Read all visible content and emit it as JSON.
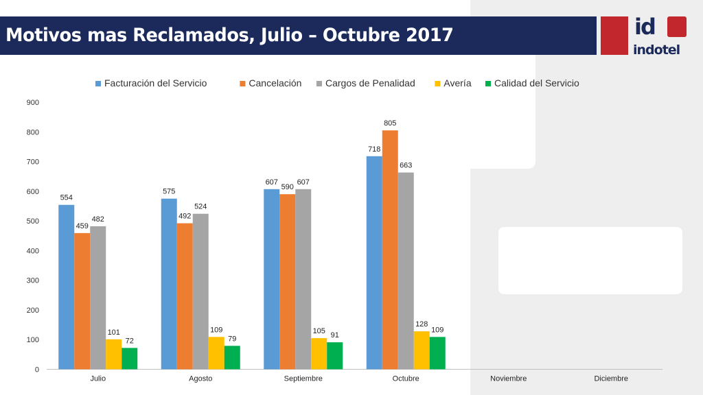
{
  "header": {
    "title": "Motivos mas Reclamados, Julio – Octubre 2017",
    "logo_mark": "id",
    "logo_text": "indotel"
  },
  "colors": {
    "title_bar": "#1b2a5b",
    "logo_red": "#c1272d"
  },
  "chart_data": {
    "type": "bar",
    "categories": [
      "Julio",
      "Agosto",
      "Septiembre",
      "Octubre",
      "Noviembre",
      "Diciembre"
    ],
    "series": [
      {
        "name": "Facturación del Servicio",
        "color": "#5b9bd5",
        "values": [
          554,
          575,
          607,
          718,
          null,
          null
        ]
      },
      {
        "name": "Cancelación",
        "color": "#ed7d31",
        "values": [
          459,
          492,
          590,
          805,
          null,
          null
        ]
      },
      {
        "name": "Cargos de Penalidad",
        "color": "#a5a5a5",
        "values": [
          482,
          524,
          607,
          663,
          null,
          null
        ]
      },
      {
        "name": "Avería",
        "color": "#ffc000",
        "values": [
          101,
          109,
          105,
          128,
          null,
          null
        ]
      },
      {
        "name": "Calidad del Servicio",
        "color": "#00b050",
        "values": [
          72,
          79,
          91,
          109,
          null,
          null
        ]
      }
    ],
    "ylim": [
      0,
      900
    ],
    "yticks": [
      0,
      100,
      200,
      300,
      400,
      500,
      600,
      700,
      800,
      900
    ],
    "grid": false,
    "legend": "top"
  }
}
